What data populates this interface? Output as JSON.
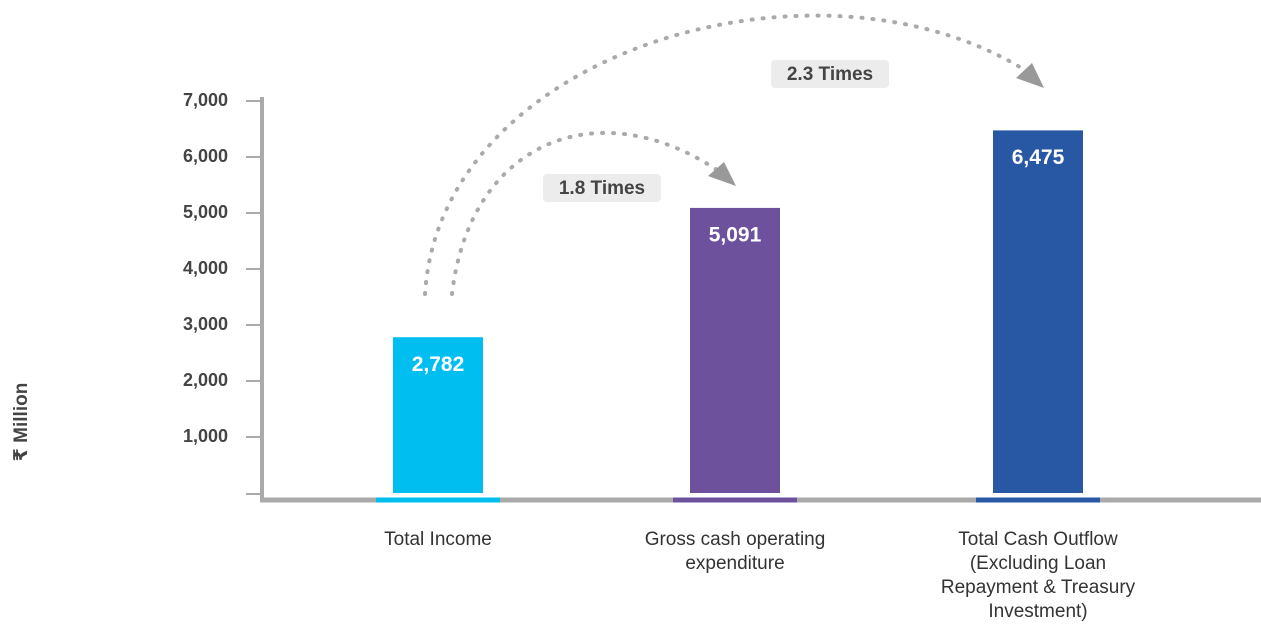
{
  "chart_data": {
    "type": "bar",
    "y_label": "₹ Million",
    "categories": [
      "Total Income",
      "Gross cash operating expenditure",
      "Total Cash Outflow (Excluding Loan Repayment & Treasury Investment)"
    ],
    "values": [
      2782,
      5091,
      6475
    ],
    "value_labels": [
      "2,782",
      "5,091",
      "6,475"
    ],
    "colors": [
      "#00bff0",
      "#6e519d",
      "#2857a4"
    ],
    "ylim": [
      0,
      7000
    ],
    "yticks": [
      {
        "value": 1000,
        "label": "1,000"
      },
      {
        "value": 2000,
        "label": "2,000"
      },
      {
        "value": 3000,
        "label": "3,000"
      },
      {
        "value": 4000,
        "label": "4,000"
      },
      {
        "value": 5000,
        "label": "5,000"
      },
      {
        "value": 6000,
        "label": "6,000"
      },
      {
        "value": 7000,
        "label": "7,000"
      }
    ],
    "annotations": [
      "1.8 Times",
      "2.3 Times"
    ]
  }
}
